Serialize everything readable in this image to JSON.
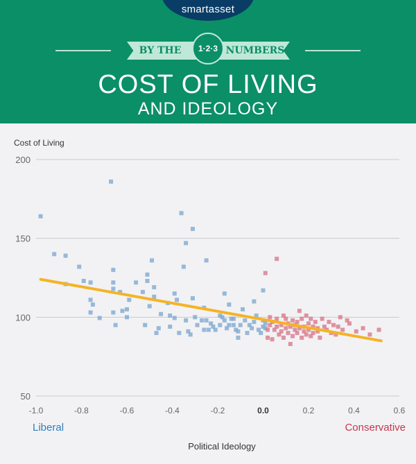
{
  "header": {
    "logo": "smartasset",
    "ribbon_left": "BY THE",
    "badge": "1·2·3",
    "ribbon_right": "NUMBERS",
    "title": "COST OF LIVING",
    "subtitle": "AND IDEOLOGY",
    "background_color": "#0b8f66",
    "logo_color": "#0a3d66"
  },
  "chart_data": {
    "type": "scatter",
    "ylabel": "Cost of Living",
    "xlabel": "Political Ideology",
    "x_ticks": [
      "-1.0",
      "-0.8",
      "-0.6",
      "-0.4",
      "-0.2",
      "0.0",
      "0.2",
      "0.4",
      "0.6"
    ],
    "y_ticks": [
      "200",
      "150",
      "100",
      "50"
    ],
    "xlim": [
      -1.0,
      0.6
    ],
    "ylim": [
      50,
      200
    ],
    "grid": "horizontal",
    "annotations": {
      "left": "Liberal",
      "right": "Conservative"
    },
    "colors": {
      "liberal": "#7fa9d2",
      "conservative": "#d8798b",
      "trend": "#f5b324",
      "liberal_label": "#2f7fbf",
      "conservative_label": "#c4374f"
    },
    "trend_line": {
      "x": [
        -0.98,
        0.52
      ],
      "y": [
        124,
        85
      ]
    },
    "series": [
      {
        "group": "liberal",
        "points": [
          [
            -0.98,
            164
          ],
          [
            -0.92,
            140
          ],
          [
            -0.87,
            139
          ],
          [
            -0.87,
            121
          ],
          [
            -0.81,
            132
          ],
          [
            -0.79,
            123
          ],
          [
            -0.76,
            122
          ],
          [
            -0.76,
            111
          ],
          [
            -0.75,
            108
          ],
          [
            -0.76,
            103
          ],
          [
            -0.72,
            99.5
          ],
          [
            -0.67,
            186
          ],
          [
            -0.66,
            130
          ],
          [
            -0.66,
            122
          ],
          [
            -0.66,
            118
          ],
          [
            -0.66,
            103
          ],
          [
            -0.65,
            95
          ],
          [
            -0.63,
            116
          ],
          [
            -0.62,
            104
          ],
          [
            -0.6,
            105
          ],
          [
            -0.6,
            100
          ],
          [
            -0.59,
            111
          ],
          [
            -0.56,
            122
          ],
          [
            -0.53,
            116
          ],
          [
            -0.52,
            95
          ],
          [
            -0.51,
            127
          ],
          [
            -0.51,
            123
          ],
          [
            -0.5,
            107
          ],
          [
            -0.49,
            136
          ],
          [
            -0.48,
            119
          ],
          [
            -0.48,
            113
          ],
          [
            -0.47,
            90
          ],
          [
            -0.46,
            93
          ],
          [
            -0.45,
            102
          ],
          [
            -0.42,
            109
          ],
          [
            -0.41,
            94
          ],
          [
            -0.41,
            101
          ],
          [
            -0.39,
            115
          ],
          [
            -0.39,
            99.5
          ],
          [
            -0.38,
            111
          ],
          [
            -0.37,
            90
          ],
          [
            -0.36,
            166
          ],
          [
            -0.35,
            132
          ],
          [
            -0.34,
            147
          ],
          [
            -0.34,
            98
          ],
          [
            -0.33,
            91
          ],
          [
            -0.32,
            89
          ],
          [
            -0.31,
            112
          ],
          [
            -0.31,
            156
          ],
          [
            -0.3,
            100
          ],
          [
            -0.29,
            95
          ],
          [
            -0.27,
            98
          ],
          [
            -0.26,
            92
          ],
          [
            -0.26,
            106
          ],
          [
            -0.25,
            136
          ],
          [
            -0.25,
            98
          ],
          [
            -0.24,
            92
          ],
          [
            -0.23,
            96
          ],
          [
            -0.22,
            94
          ],
          [
            -0.21,
            92
          ],
          [
            -0.19,
            95
          ],
          [
            -0.19,
            101
          ],
          [
            -0.18,
            100
          ],
          [
            -0.17,
            98
          ],
          [
            -0.17,
            115
          ],
          [
            -0.16,
            93
          ],
          [
            -0.15,
            95
          ],
          [
            -0.15,
            108
          ],
          [
            -0.14,
            99
          ],
          [
            -0.13,
            99
          ],
          [
            -0.13,
            95
          ],
          [
            -0.12,
            92
          ],
          [
            -0.11,
            91
          ],
          [
            -0.11,
            87
          ],
          [
            -0.1,
            95
          ],
          [
            -0.09,
            105
          ],
          [
            -0.08,
            98
          ],
          [
            -0.07,
            90
          ],
          [
            -0.06,
            95
          ],
          [
            -0.05,
            93
          ],
          [
            -0.04,
            110
          ],
          [
            -0.04,
            97
          ],
          [
            -0.03,
            101
          ],
          [
            -0.02,
            92
          ],
          [
            -0.01,
            90
          ],
          [
            0.0,
            117
          ],
          [
            0.0,
            98
          ],
          [
            0.0,
            94
          ],
          [
            0.01,
            96
          ],
          [
            0.01,
            93
          ]
        ]
      },
      {
        "group": "conservative",
        "points": [
          [
            0.01,
            128
          ],
          [
            0.02,
            87
          ],
          [
            0.02,
            92
          ],
          [
            0.03,
            100
          ],
          [
            0.03,
            95
          ],
          [
            0.04,
            86
          ],
          [
            0.04,
            97
          ],
          [
            0.05,
            92
          ],
          [
            0.06,
            137
          ],
          [
            0.06,
            99
          ],
          [
            0.06,
            94
          ],
          [
            0.07,
            89
          ],
          [
            0.08,
            95
          ],
          [
            0.08,
            91
          ],
          [
            0.09,
            101
          ],
          [
            0.09,
            87
          ],
          [
            0.1,
            93
          ],
          [
            0.1,
            99
          ],
          [
            0.11,
            90
          ],
          [
            0.11,
            96
          ],
          [
            0.12,
            83
          ],
          [
            0.12,
            94
          ],
          [
            0.13,
            98
          ],
          [
            0.13,
            88
          ],
          [
            0.14,
            92
          ],
          [
            0.14,
            95
          ],
          [
            0.15,
            90
          ],
          [
            0.15,
            97
          ],
          [
            0.16,
            104
          ],
          [
            0.16,
            93
          ],
          [
            0.17,
            87
          ],
          [
            0.17,
            99
          ],
          [
            0.18,
            91
          ],
          [
            0.18,
            94
          ],
          [
            0.19,
            101
          ],
          [
            0.19,
            89
          ],
          [
            0.2,
            96
          ],
          [
            0.2,
            92
          ],
          [
            0.21,
            88
          ],
          [
            0.21,
            99
          ],
          [
            0.22,
            94
          ],
          [
            0.22,
            90
          ],
          [
            0.23,
            97
          ],
          [
            0.24,
            93
          ],
          [
            0.24,
            91
          ],
          [
            0.25,
            87
          ],
          [
            0.26,
            99
          ],
          [
            0.27,
            94
          ],
          [
            0.28,
            92
          ],
          [
            0.29,
            97
          ],
          [
            0.3,
            90
          ],
          [
            0.31,
            95
          ],
          [
            0.32,
            89
          ],
          [
            0.33,
            94
          ],
          [
            0.34,
            100
          ],
          [
            0.35,
            92
          ],
          [
            0.37,
            98
          ],
          [
            0.38,
            96
          ],
          [
            0.41,
            91
          ],
          [
            0.44,
            93
          ],
          [
            0.47,
            89
          ],
          [
            0.51,
            92
          ]
        ]
      }
    ]
  }
}
